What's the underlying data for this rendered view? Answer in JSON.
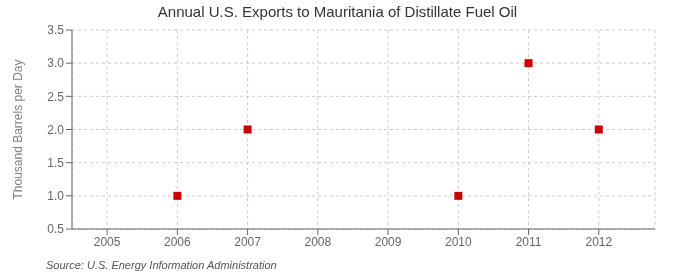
{
  "chart_data": {
    "type": "scatter",
    "title": "Annual U.S. Exports to Mauritania of Distillate Fuel Oil",
    "y_label": "Thousand Barrels per Day",
    "annotations": [
      "Source: U.S. Energy Information Administration"
    ],
    "x": [
      2006,
      2007,
      2010,
      2011,
      2012
    ],
    "values": [
      1.0,
      2.0,
      1.0,
      3.0,
      2.0
    ],
    "color": "#CC0000",
    "marker": "square",
    "xlim": [
      2004.5,
      2012.8
    ],
    "ylim": [
      0.5,
      3.5
    ],
    "xticks": [
      2005,
      2006,
      2007,
      2008,
      2009,
      2010,
      2011,
      2012
    ],
    "yticks": [
      0.5,
      {
        "value": 1.0,
        "label": "1.0"
      },
      1.5,
      {
        "value": 2.0,
        "label": "2.0"
      },
      2.5,
      {
        "value": 3.0,
        "label": "3.0"
      },
      3.5
    ],
    "grid": true
  }
}
